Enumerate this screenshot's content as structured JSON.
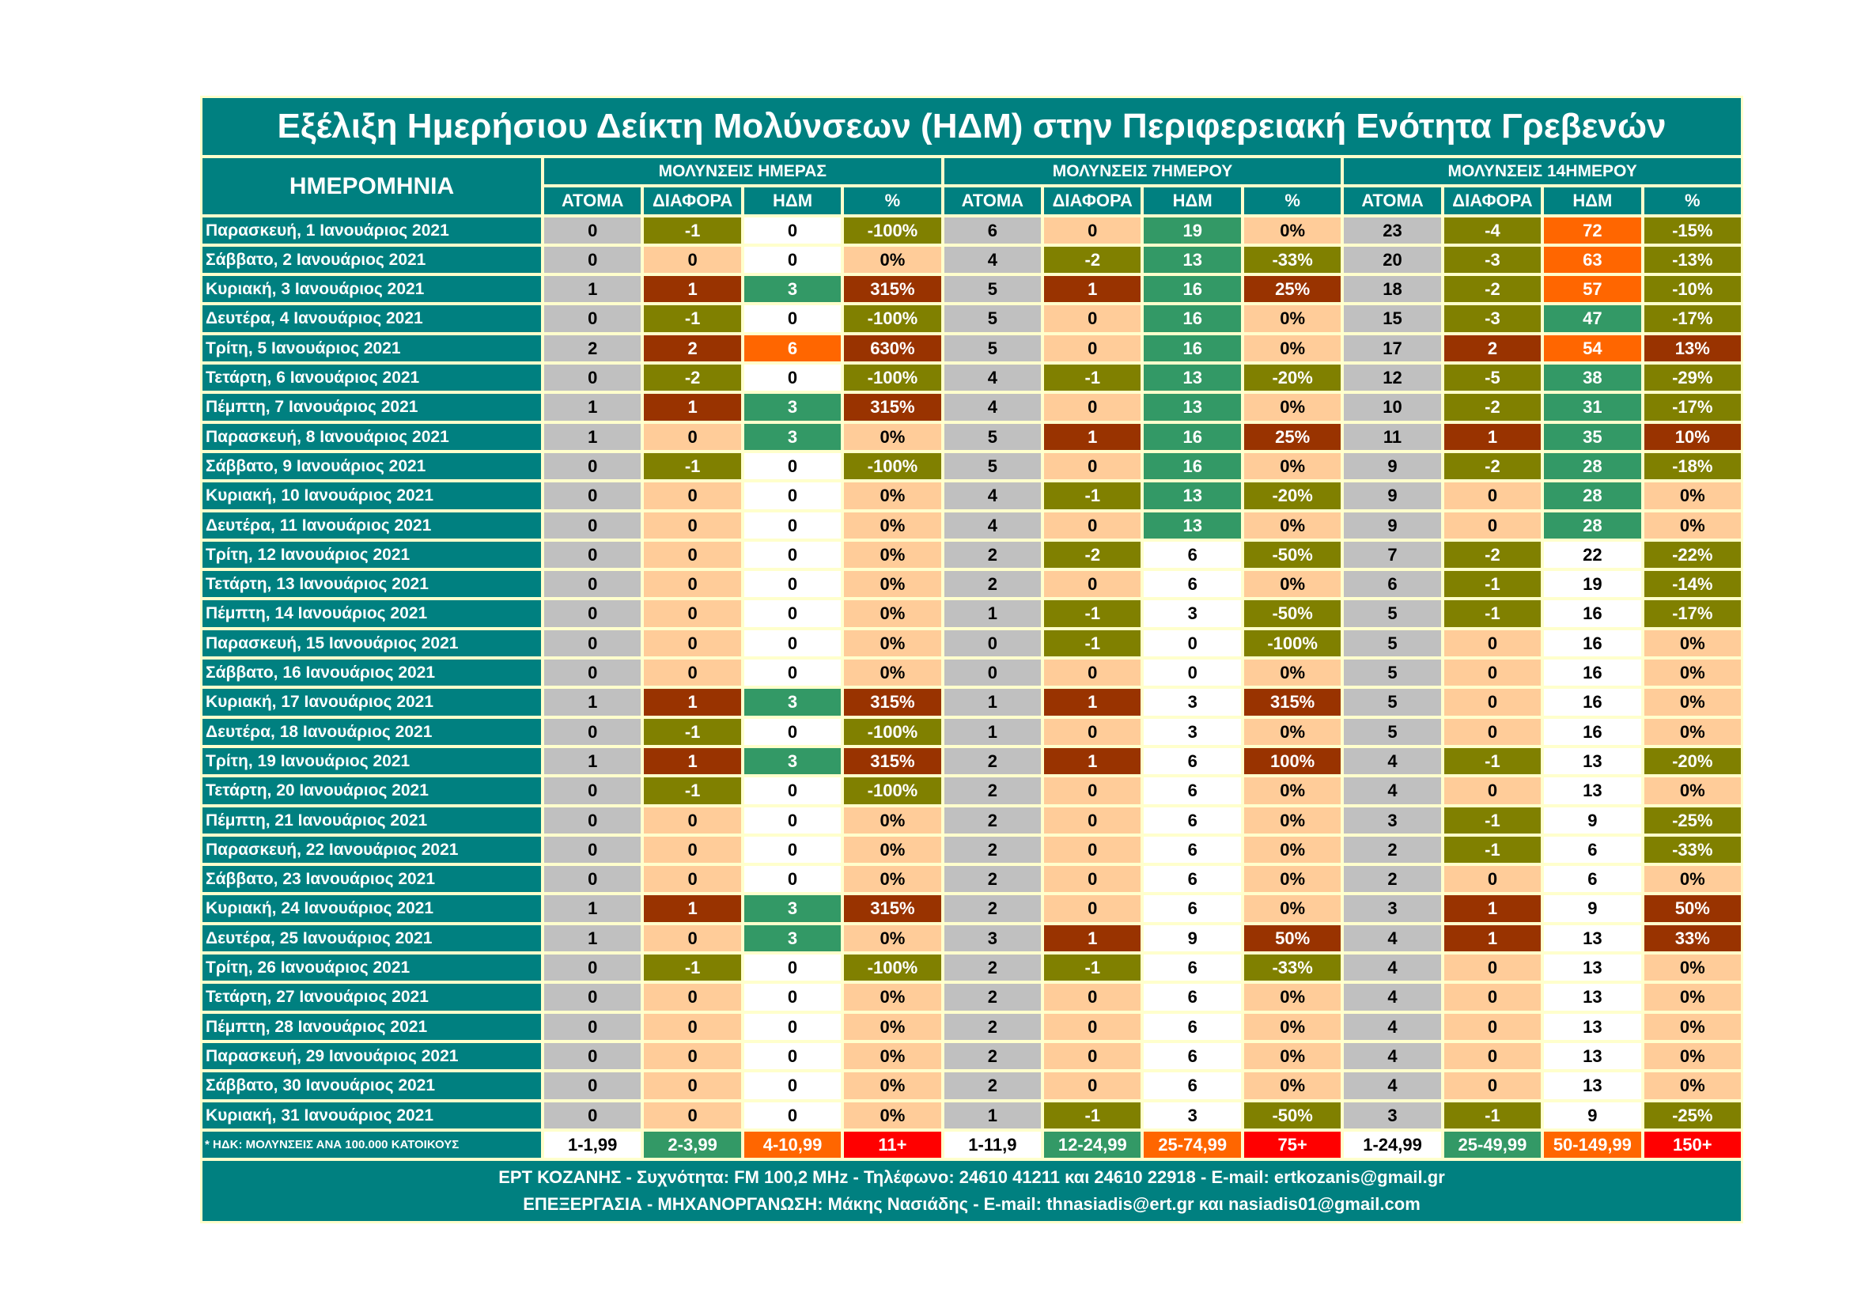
{
  "title": "Εξέλιξη Ημερήσιου Δείκτη Μολύνσεων (ΗΔΜ) στην Περιφερειακή Ενότητα Γρεβενών",
  "date_header": "ΗΜΕΡΟΜΗΝΙΑ",
  "groups": [
    "ΜΟΛΥΝΣΕΙΣ ΗΜΕΡΑΣ",
    "ΜΟΛΥΝΣΕΙΣ 7ΗΜΕΡΟΥ",
    "ΜΟΛΥΝΣΕΙΣ 14ΗΜΕΡΟΥ"
  ],
  "subheaders": [
    "ΑΤΟΜΑ",
    "ΔΙΑΦΟΡΑ",
    "ΗΔΜ",
    "%"
  ],
  "colors": {
    "teal": "#008080",
    "grey": "#C0C0C0",
    "peach": "#FFCC99",
    "olive": "#808000",
    "dark_red": "#993300",
    "green": "#339966",
    "orange": "#FF6600",
    "red": "#FF0000",
    "border": "#FFFFCC"
  },
  "rows": [
    [
      "Παρασκευή, 1 Ιανουάριος 2021",
      "0",
      "-1",
      "0",
      "-100%",
      "6",
      "0",
      "19",
      "0%",
      "23",
      "-4",
      "72",
      "-15%"
    ],
    [
      "Σάββατο, 2 Ιανουάριος 2021",
      "0",
      "0",
      "0",
      "0%",
      "4",
      "-2",
      "13",
      "-33%",
      "20",
      "-3",
      "63",
      "-13%"
    ],
    [
      "Κυριακή, 3 Ιανουάριος 2021",
      "1",
      "1",
      "3",
      "315%",
      "5",
      "1",
      "16",
      "25%",
      "18",
      "-2",
      "57",
      "-10%"
    ],
    [
      "Δευτέρα, 4 Ιανουάριος 2021",
      "0",
      "-1",
      "0",
      "-100%",
      "5",
      "0",
      "16",
      "0%",
      "15",
      "-3",
      "47",
      "-17%"
    ],
    [
      "Τρίτη, 5 Ιανουάριος 2021",
      "2",
      "2",
      "6",
      "630%",
      "5",
      "0",
      "16",
      "0%",
      "17",
      "2",
      "54",
      "13%"
    ],
    [
      "Τετάρτη, 6 Ιανουάριος 2021",
      "0",
      "-2",
      "0",
      "-100%",
      "4",
      "-1",
      "13",
      "-20%",
      "12",
      "-5",
      "38",
      "-29%"
    ],
    [
      "Πέμπτη, 7 Ιανουάριος 2021",
      "1",
      "1",
      "3",
      "315%",
      "4",
      "0",
      "13",
      "0%",
      "10",
      "-2",
      "31",
      "-17%"
    ],
    [
      "Παρασκευή, 8 Ιανουάριος 2021",
      "1",
      "0",
      "3",
      "0%",
      "5",
      "1",
      "16",
      "25%",
      "11",
      "1",
      "35",
      "10%"
    ],
    [
      "Σάββατο, 9 Ιανουάριος 2021",
      "0",
      "-1",
      "0",
      "-100%",
      "5",
      "0",
      "16",
      "0%",
      "9",
      "-2",
      "28",
      "-18%"
    ],
    [
      "Κυριακή, 10 Ιανουάριος 2021",
      "0",
      "0",
      "0",
      "0%",
      "4",
      "-1",
      "13",
      "-20%",
      "9",
      "0",
      "28",
      "0%"
    ],
    [
      "Δευτέρα, 11 Ιανουάριος 2021",
      "0",
      "0",
      "0",
      "0%",
      "4",
      "0",
      "13",
      "0%",
      "9",
      "0",
      "28",
      "0%"
    ],
    [
      "Τρίτη, 12 Ιανουάριος 2021",
      "0",
      "0",
      "0",
      "0%",
      "2",
      "-2",
      "6",
      "-50%",
      "7",
      "-2",
      "22",
      "-22%"
    ],
    [
      "Τετάρτη, 13 Ιανουάριος 2021",
      "0",
      "0",
      "0",
      "0%",
      "2",
      "0",
      "6",
      "0%",
      "6",
      "-1",
      "19",
      "-14%"
    ],
    [
      "Πέμπτη, 14 Ιανουάριος 2021",
      "0",
      "0",
      "0",
      "0%",
      "1",
      "-1",
      "3",
      "-50%",
      "5",
      "-1",
      "16",
      "-17%"
    ],
    [
      "Παρασκευή, 15 Ιανουάριος 2021",
      "0",
      "0",
      "0",
      "0%",
      "0",
      "-1",
      "0",
      "-100%",
      "5",
      "0",
      "16",
      "0%"
    ],
    [
      "Σάββατο, 16 Ιανουάριος 2021",
      "0",
      "0",
      "0",
      "0%",
      "0",
      "0",
      "0",
      "0%",
      "5",
      "0",
      "16",
      "0%"
    ],
    [
      "Κυριακή, 17 Ιανουάριος 2021",
      "1",
      "1",
      "3",
      "315%",
      "1",
      "1",
      "3",
      "315%",
      "5",
      "0",
      "16",
      "0%"
    ],
    [
      "Δευτέρα, 18 Ιανουάριος 2021",
      "0",
      "-1",
      "0",
      "-100%",
      "1",
      "0",
      "3",
      "0%",
      "5",
      "0",
      "16",
      "0%"
    ],
    [
      "Τρίτη, 19 Ιανουάριος 2021",
      "1",
      "1",
      "3",
      "315%",
      "2",
      "1",
      "6",
      "100%",
      "4",
      "-1",
      "13",
      "-20%"
    ],
    [
      "Τετάρτη, 20 Ιανουάριος 2021",
      "0",
      "-1",
      "0",
      "-100%",
      "2",
      "0",
      "6",
      "0%",
      "4",
      "0",
      "13",
      "0%"
    ],
    [
      "Πέμπτη, 21 Ιανουάριος 2021",
      "0",
      "0",
      "0",
      "0%",
      "2",
      "0",
      "6",
      "0%",
      "3",
      "-1",
      "9",
      "-25%"
    ],
    [
      "Παρασκευή, 22 Ιανουάριος 2021",
      "0",
      "0",
      "0",
      "0%",
      "2",
      "0",
      "6",
      "0%",
      "2",
      "-1",
      "6",
      "-33%"
    ],
    [
      "Σάββατο, 23 Ιανουάριος 2021",
      "0",
      "0",
      "0",
      "0%",
      "2",
      "0",
      "6",
      "0%",
      "2",
      "0",
      "6",
      "0%"
    ],
    [
      "Κυριακή, 24 Ιανουάριος 2021",
      "1",
      "1",
      "3",
      "315%",
      "2",
      "0",
      "6",
      "0%",
      "3",
      "1",
      "9",
      "50%"
    ],
    [
      "Δευτέρα, 25 Ιανουάριος 2021",
      "1",
      "0",
      "3",
      "0%",
      "3",
      "1",
      "9",
      "50%",
      "4",
      "1",
      "13",
      "33%"
    ],
    [
      "Τρίτη, 26 Ιανουάριος 2021",
      "0",
      "-1",
      "0",
      "-100%",
      "2",
      "-1",
      "6",
      "-33%",
      "4",
      "0",
      "13",
      "0%"
    ],
    [
      "Τετάρτη, 27 Ιανουάριος 2021",
      "0",
      "0",
      "0",
      "0%",
      "2",
      "0",
      "6",
      "0%",
      "4",
      "0",
      "13",
      "0%"
    ],
    [
      "Πέμπτη, 28 Ιανουάριος 2021",
      "0",
      "0",
      "0",
      "0%",
      "2",
      "0",
      "6",
      "0%",
      "4",
      "0",
      "13",
      "0%"
    ],
    [
      "Παρασκευή, 29 Ιανουάριος 2021",
      "0",
      "0",
      "0",
      "0%",
      "2",
      "0",
      "6",
      "0%",
      "4",
      "0",
      "13",
      "0%"
    ],
    [
      "Σάββατο, 30 Ιανουάριος 2021",
      "0",
      "0",
      "0",
      "0%",
      "2",
      "0",
      "6",
      "0%",
      "4",
      "0",
      "13",
      "0%"
    ],
    [
      "Κυριακή, 31 Ιανουάριος 2021",
      "0",
      "0",
      "0",
      "0%",
      "1",
      "-1",
      "3",
      "-50%",
      "3",
      "-1",
      "9",
      "-25%"
    ]
  ],
  "legend": {
    "note": "* ΗΔΚ: ΜΟΛΥΝΣΕΙΣ ΑΝΑ 100.000 ΚΑΤΟΙΚΟΥΣ",
    "ranges": [
      "1-1,99",
      "2-3,99",
      "4-10,99",
      "11+",
      "1-11,9",
      "12-24,99",
      "25-74,99",
      "75+",
      "1-24,99",
      "25-49,99",
      "50-149,99",
      "150+"
    ],
    "thresholds": [
      [
        2,
        4,
        11
      ],
      [
        12,
        25,
        75
      ],
      [
        25,
        50,
        150
      ]
    ]
  },
  "footer": {
    "line1": "ΕΡΤ ΚΟΖΑΝΗΣ   -   Συχνότητα:  FM 100,2 MHz   -   Τηλέφωνο:  24610 41211 και 24610 22918   -   E-mail: ertkozanis@gmail.gr",
    "line2": "ΕΠΕΞΕΡΓΑΣΙΑ  -  ΜΗΧΑΝΟΡΓΑΝΩΣΗ: Μάκης Νασιάδης   -   E-mail: thnasiadis@ert.gr και nasiadis01@gmail.com"
  }
}
